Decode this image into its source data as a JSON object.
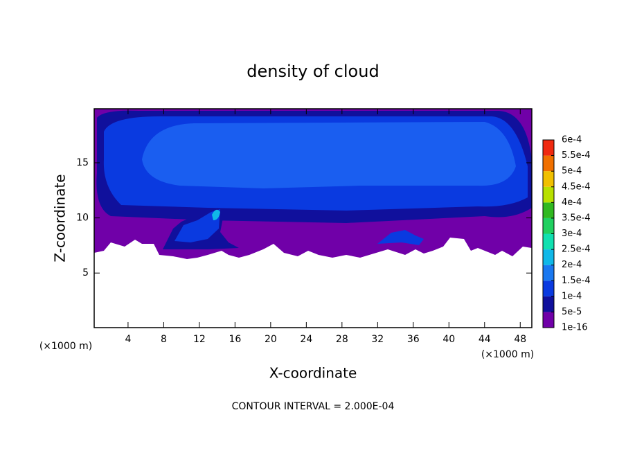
{
  "chart_data": {
    "type": "contour",
    "title": "density of cloud",
    "xlabel": "X-coordinate",
    "ylabel": "Z-coordinate",
    "x_unit_label": "(×1000 m)",
    "y_unit_label": "(×1000 m)",
    "footer": "CONTOUR INTERVAL = 2.000E-04",
    "xlim": [
      0.2,
      49.3
    ],
    "ylim": [
      0.05,
      19.9
    ],
    "xticks": [
      4,
      8,
      12,
      16,
      20,
      24,
      28,
      32,
      36,
      40,
      44,
      48
    ],
    "yticks": [
      5,
      10,
      15
    ],
    "colorbar": {
      "ticks": [
        {
          "value": 1e-16,
          "label": "1e-16"
        },
        {
          "value": 5e-05,
          "label": "5e-5"
        },
        {
          "value": 0.0001,
          "label": "1e-4"
        },
        {
          "value": 0.00015,
          "label": "1.5e-4"
        },
        {
          "value": 0.0002,
          "label": "2e-4"
        },
        {
          "value": 0.00025,
          "label": "2.5e-4"
        },
        {
          "value": 0.0003,
          "label": "3e-4"
        },
        {
          "value": 0.00035,
          "label": "3.5e-4"
        },
        {
          "value": 0.0004,
          "label": "4e-4"
        },
        {
          "value": 0.00045,
          "label": "4.5e-4"
        },
        {
          "value": 0.0005,
          "label": "5e-4"
        },
        {
          "value": 0.00055,
          "label": "5.5e-4"
        },
        {
          "value": 0.0006,
          "label": "6e-4"
        }
      ],
      "colors": [
        "#7000a8",
        "#10109c",
        "#0a3ae0",
        "#1a78f0",
        "#10b8e8",
        "#10e0b0",
        "#20d060",
        "#30b820",
        "#b8e000",
        "#f0c000",
        "#f07000",
        "#f02a10",
        "#f08a8a"
      ]
    }
  }
}
